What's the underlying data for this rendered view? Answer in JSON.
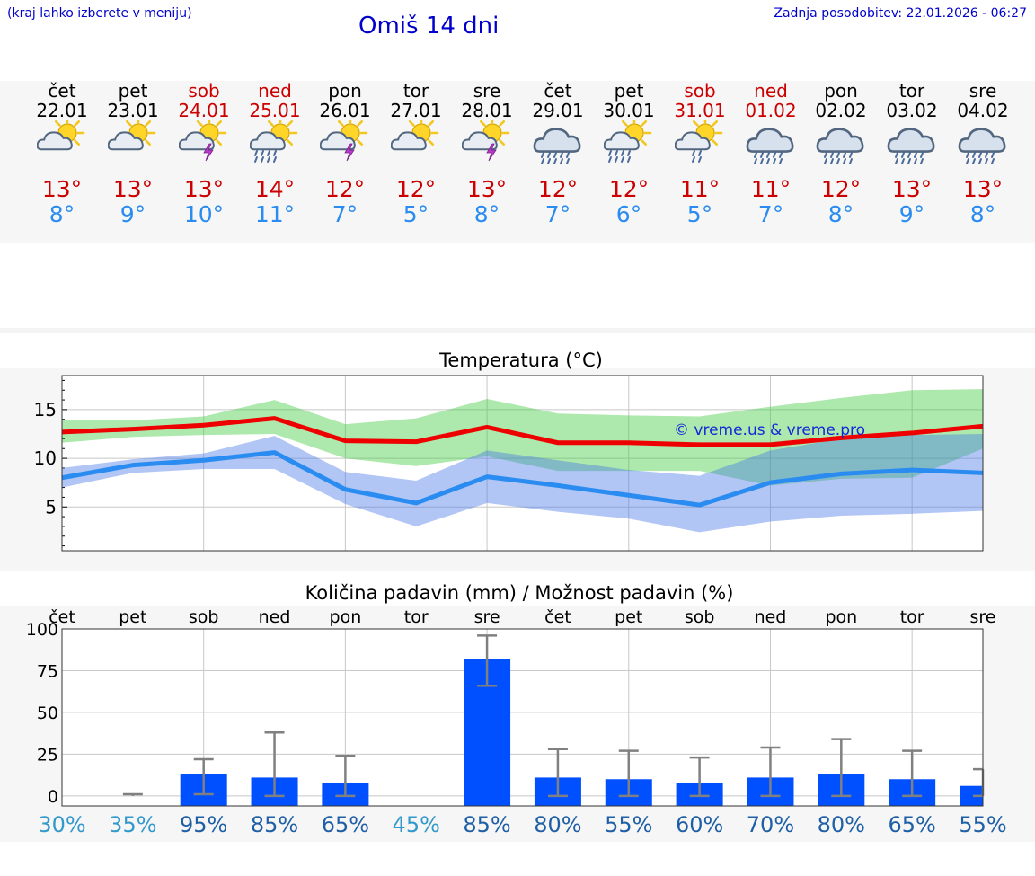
{
  "header": {
    "hint": "(kraj lahko izberete v meniju)",
    "title": "Omiš 14 dni",
    "updated": "Zadnja posodobitev: 22.01.2026 - 06:27"
  },
  "colors": {
    "weekend": "#cc0000",
    "weekday": "#000000",
    "tmax": "#cc0000",
    "tmin": "#2a8cf0",
    "title": "#0000cc",
    "bar": "#0050ff"
  },
  "days": [
    {
      "name": "čet",
      "date": "22.01",
      "weekend": false,
      "icon": "sun-cloud-icon",
      "tmax": "13°",
      "tmin": "8°"
    },
    {
      "name": "pet",
      "date": "23.01",
      "weekend": false,
      "icon": "sun-cloud-icon",
      "tmax": "13°",
      "tmin": "9°"
    },
    {
      "name": "sob",
      "date": "24.01",
      "weekend": true,
      "icon": "sun-cloud-thunder-icon",
      "tmax": "13°",
      "tmin": "10°"
    },
    {
      "name": "ned",
      "date": "25.01",
      "weekend": true,
      "icon": "sun-cloud-rain-icon",
      "tmax": "14°",
      "tmin": "11°"
    },
    {
      "name": "pon",
      "date": "26.01",
      "weekend": false,
      "icon": "sun-cloud-thunder-icon",
      "tmax": "12°",
      "tmin": "7°"
    },
    {
      "name": "tor",
      "date": "27.01",
      "weekend": false,
      "icon": "sun-cloud-icon",
      "tmax": "12°",
      "tmin": "5°"
    },
    {
      "name": "sre",
      "date": "28.01",
      "weekend": false,
      "icon": "sun-cloud-thunder-icon",
      "tmax": "13°",
      "tmin": "8°"
    },
    {
      "name": "čet",
      "date": "29.01",
      "weekend": false,
      "icon": "cloud-rain-icon",
      "tmax": "12°",
      "tmin": "7°"
    },
    {
      "name": "pet",
      "date": "30.01",
      "weekend": false,
      "icon": "sun-cloud-rain-icon",
      "tmax": "12°",
      "tmin": "6°"
    },
    {
      "name": "sob",
      "date": "31.01",
      "weekend": true,
      "icon": "sun-cloud-light-rain-icon",
      "tmax": "11°",
      "tmin": "5°"
    },
    {
      "name": "ned",
      "date": "01.02",
      "weekend": true,
      "icon": "cloud-rain-icon",
      "tmax": "11°",
      "tmin": "7°"
    },
    {
      "name": "pon",
      "date": "02.02",
      "weekend": false,
      "icon": "cloud-rain-icon",
      "tmax": "12°",
      "tmin": "8°"
    },
    {
      "name": "tor",
      "date": "03.02",
      "weekend": false,
      "icon": "cloud-rain-icon",
      "tmax": "13°",
      "tmin": "9°"
    },
    {
      "name": "sre",
      "date": "04.02",
      "weekend": false,
      "icon": "cloud-rain-icon",
      "tmax": "13°",
      "tmin": "8°"
    }
  ],
  "chart_data": [
    {
      "type": "line",
      "title": "Temperatura (°C)",
      "watermark": "© vreme.us & vreme.pro",
      "x": [
        0,
        1,
        2,
        3,
        4,
        5,
        6,
        7,
        8,
        9,
        10,
        11,
        12,
        13
      ],
      "ylim": [
        0.5,
        18.5
      ],
      "yticks": [
        5,
        10,
        15
      ],
      "grid": true,
      "series": [
        {
          "name": "max",
          "color": "#ee0000",
          "values": [
            12.7,
            13.0,
            13.4,
            14.1,
            11.8,
            11.7,
            13.2,
            11.6,
            11.6,
            11.4,
            11.4,
            12.1,
            12.6,
            13.3
          ]
        },
        {
          "name": "min",
          "color": "#2a8cf0",
          "values": [
            8.0,
            9.3,
            9.8,
            10.6,
            6.8,
            5.4,
            8.1,
            7.2,
            6.2,
            5.2,
            7.5,
            8.4,
            8.8,
            8.5
          ]
        }
      ],
      "bands": [
        {
          "name": "max-range",
          "color": "rgba(60,200,60,0.42)",
          "upper": [
            13.9,
            13.9,
            14.3,
            16.0,
            13.5,
            14.1,
            16.1,
            14.6,
            14.4,
            14.3,
            15.3,
            16.2,
            17.0,
            17.1
          ],
          "lower": [
            11.6,
            12.2,
            12.4,
            12.5,
            10.0,
            9.2,
            10.2,
            8.7,
            8.7,
            8.7,
            7.2,
            7.9,
            8.0,
            11.0
          ]
        },
        {
          "name": "min-range",
          "color": "rgba(70,120,230,0.42)",
          "upper": [
            9.0,
            9.9,
            10.5,
            12.3,
            8.6,
            7.7,
            10.8,
            9.8,
            8.8,
            8.2,
            10.8,
            12.0,
            12.4,
            12.5
          ],
          "lower": [
            7.0,
            8.5,
            8.9,
            8.9,
            5.3,
            3.0,
            5.4,
            4.5,
            3.8,
            2.4,
            3.5,
            4.1,
            4.3,
            4.6
          ]
        }
      ]
    },
    {
      "type": "bar",
      "title": "Količina padavin (mm) / Možnost padavin (%)",
      "categories": [
        "čet",
        "pet",
        "sob",
        "ned",
        "pon",
        "tor",
        "sre",
        "čet",
        "pet",
        "sob",
        "ned",
        "pon",
        "tor",
        "sre"
      ],
      "values": [
        0,
        0,
        13,
        11,
        8,
        0,
        82,
        11,
        10,
        8,
        11,
        13,
        10,
        6
      ],
      "err_low": [
        0,
        0,
        1,
        0,
        0,
        0,
        66,
        0,
        0,
        0,
        0,
        0,
        0,
        0
      ],
      "err_high": [
        0,
        1,
        22,
        38,
        24,
        0,
        96,
        28,
        27,
        23,
        29,
        34,
        27,
        16
      ],
      "ylim": [
        -6,
        100
      ],
      "yticks": [
        0,
        25,
        50,
        75,
        100
      ],
      "chance": [
        "30%",
        "35%",
        "95%",
        "85%",
        "65%",
        "45%",
        "85%",
        "80%",
        "55%",
        "60%",
        "70%",
        "80%",
        "65%",
        "55%"
      ],
      "chance_colors": [
        "#3399cc",
        "#3399cc",
        "#1f5fa5",
        "#1f5fa5",
        "#1f5fa5",
        "#3399cc",
        "#1f5fa5",
        "#1f5fa5",
        "#1f5fa5",
        "#1f5fa5",
        "#1f5fa5",
        "#1f5fa5",
        "#1f5fa5",
        "#1f5fa5"
      ]
    }
  ]
}
